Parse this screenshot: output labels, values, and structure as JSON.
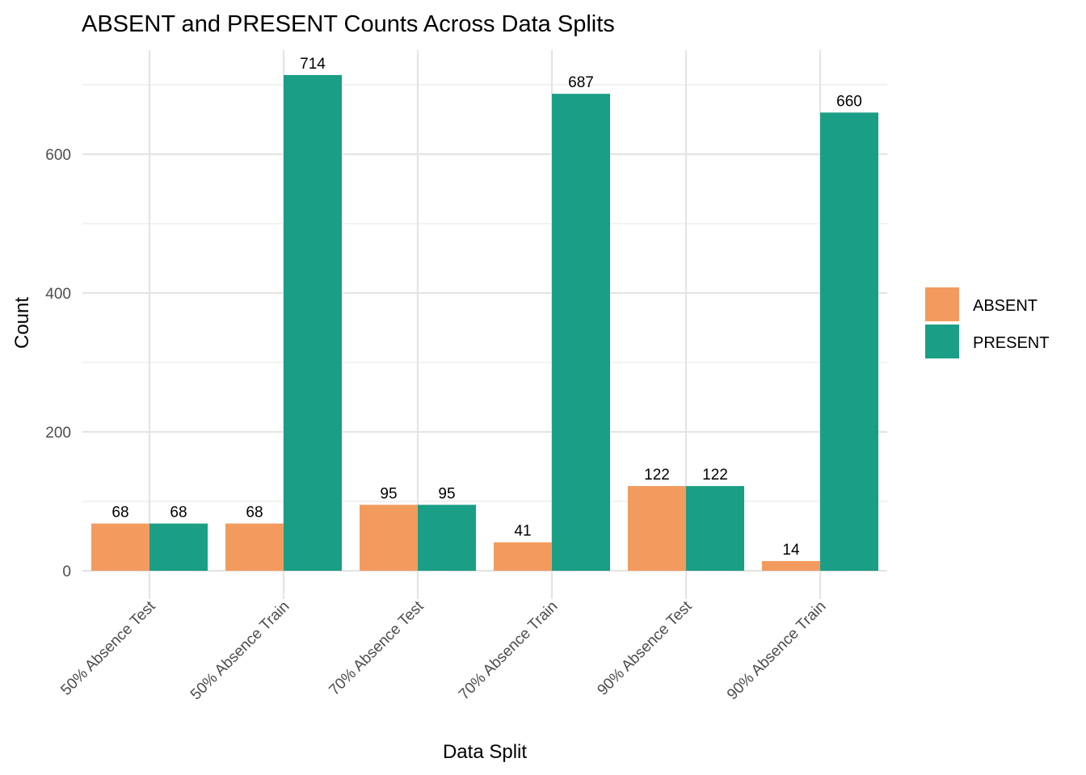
{
  "chart_data": {
    "type": "bar",
    "title": "ABSENT and PRESENT Counts Across Data Splits",
    "xlabel": "Data Split",
    "ylabel": "Count",
    "categories": [
      "50% Absence Test",
      "50% Absence Train",
      "70% Absence Test",
      "70% Absence Train",
      "90% Absence Test",
      "90% Absence Train"
    ],
    "series": [
      {
        "name": "ABSENT",
        "color": "#F39B5F",
        "values": [
          68,
          68,
          95,
          41,
          122,
          14
        ]
      },
      {
        "name": "PRESENT",
        "color": "#1A9E85",
        "values": [
          68,
          714,
          95,
          687,
          122,
          660
        ]
      }
    ],
    "ylim": [
      -40,
      750
    ],
    "yticks": [
      0,
      200,
      400,
      600
    ],
    "ytick_labels": [
      "0",
      "200",
      "400",
      "600"
    ],
    "grid": true,
    "legend_position": "right"
  }
}
